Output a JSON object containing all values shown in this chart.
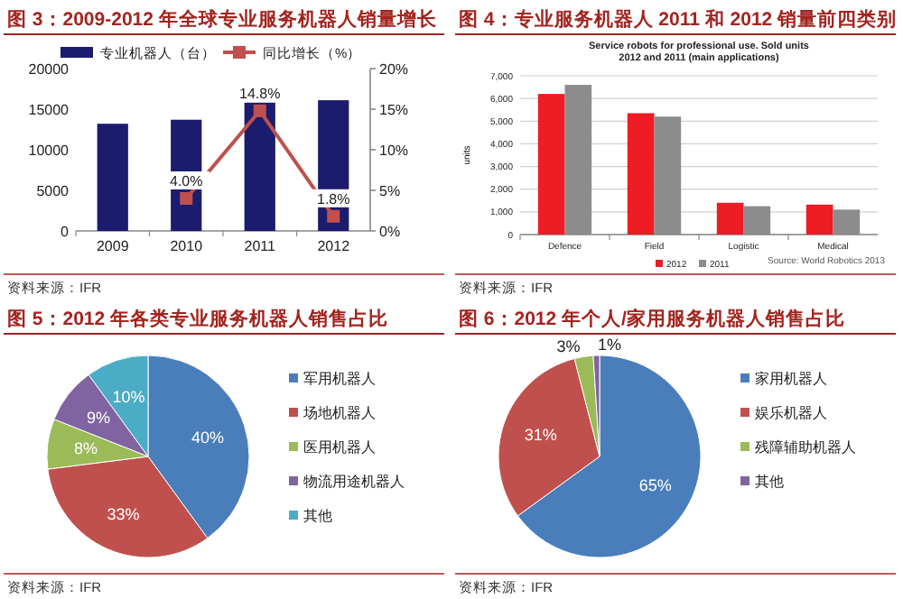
{
  "chart_data": [
    {
      "type": "bar",
      "title": "图 3：2009-2012 年全球专业服务机器人销量增长",
      "categories": [
        "2009",
        "2010",
        "2011",
        "2012"
      ],
      "series": [
        {
          "name": "专业机器人（台）",
          "type": "bar",
          "color": "#1c1c6e",
          "values": [
            13200,
            13700,
            15800,
            16100
          ]
        },
        {
          "name": "同比增长（%）",
          "type": "line",
          "axis": "y2",
          "color": "#c0504d",
          "marker": "square",
          "values": [
            null,
            4.0,
            14.8,
            1.8
          ],
          "value_labels": [
            null,
            "4.0%",
            "14.8%",
            "1.8%"
          ]
        }
      ],
      "ylim": [
        0,
        20000
      ],
      "yticks": [
        0,
        5000,
        10000,
        15000,
        20000
      ],
      "y2lim": [
        0,
        20
      ],
      "y2ticks": [
        {
          "value": 0,
          "label": "0%"
        },
        {
          "value": 5,
          "label": "5%"
        },
        {
          "value": 10,
          "label": "10%"
        },
        {
          "value": 15,
          "label": "15%"
        },
        {
          "value": 20,
          "label": "20%"
        }
      ],
      "legend": "top",
      "annotations": [
        "资料来源：IFR"
      ]
    },
    {
      "type": "bar",
      "title": "图 4：专业服务机器人 2011 和 2012 销量前四类别",
      "subtitle": "Service robots for professional use. Sold units 2012 and 2011 (main applications)",
      "ylabel": "units",
      "categories": [
        "Defence",
        "Field",
        "Logistic",
        "Medical"
      ],
      "series": [
        {
          "name": "2012",
          "color": "#ee1c25",
          "values": [
            6200,
            5350,
            1400,
            1320
          ]
        },
        {
          "name": "2011",
          "color": "#8c8c8c",
          "values": [
            6600,
            5200,
            1250,
            1100
          ]
        }
      ],
      "ylim": [
        0,
        7000
      ],
      "yticks": [
        0,
        {
          "value": 1000,
          "label": "1,000"
        },
        {
          "value": 2000,
          "label": "2,000"
        },
        {
          "value": 3000,
          "label": "3,000"
        },
        {
          "value": 4000,
          "label": "4,000"
        },
        {
          "value": 5000,
          "label": "5,000"
        },
        {
          "value": 6000,
          "label": "6,000"
        },
        {
          "value": 7000,
          "label": "7,000"
        }
      ],
      "grid": "y",
      "legend": "bottom",
      "annotations": [
        "Source: World Robotics 2013",
        "资料来源：IFR"
      ]
    },
    {
      "type": "pie",
      "title": "图 5：2012 年各类专业服务机器人销售占比",
      "categories": [
        "军用机器人",
        "场地机器人",
        "医用机器人",
        "物流用途机器人",
        "其他"
      ],
      "values": [
        40,
        33,
        8,
        9,
        10
      ],
      "value_labels": [
        "40%",
        "33%",
        "8%",
        "9%",
        "10%"
      ],
      "colors": [
        "#4a7ebb",
        "#c0504d",
        "#9bbb59",
        "#8064a2",
        "#4bacc6"
      ],
      "legend": "right",
      "annotations": [
        "资料来源：IFR"
      ]
    },
    {
      "type": "pie",
      "title": "图 6：2012 年个人/家用服务机器人销售占比",
      "categories": [
        "家用机器人",
        "娱乐机器人",
        "残障辅助机器人",
        "其他"
      ],
      "values": [
        65,
        31,
        3,
        1
      ],
      "value_labels": [
        "65%",
        "31%",
        "3%",
        "1%"
      ],
      "colors": [
        "#4a7ebb",
        "#c0504d",
        "#9bbb59",
        "#8064a2"
      ],
      "legend": "right",
      "annotations": [
        "资料来源：IFR"
      ]
    }
  ]
}
